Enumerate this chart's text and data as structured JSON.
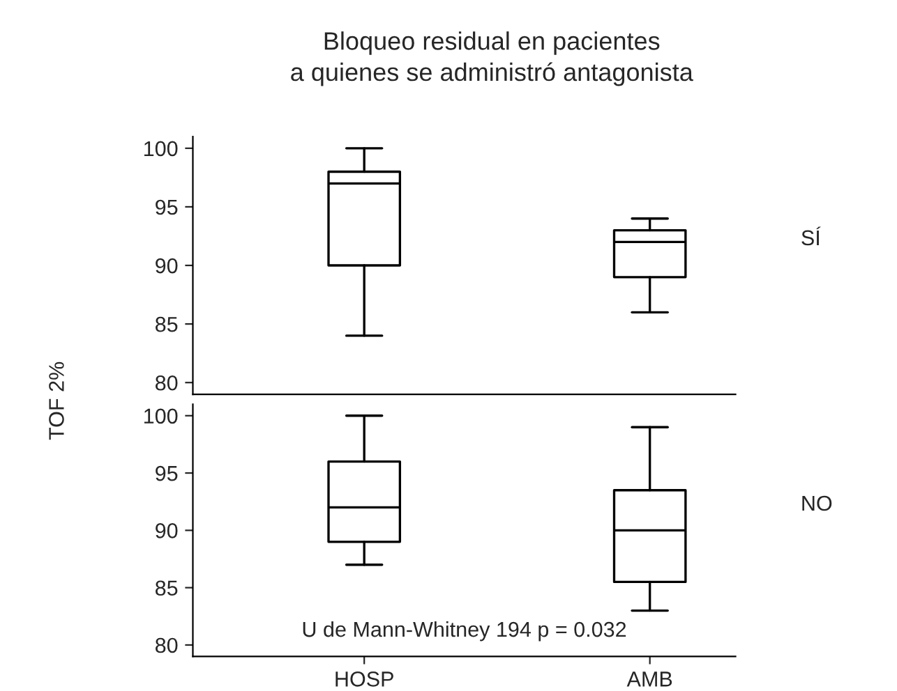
{
  "chart_data": [
    {
      "type": "box",
      "title": "Bloqueo residual en pacientes\na quienes se administró antagonista",
      "ylabel": "TOF 2%",
      "categories": [
        null,
        null
      ],
      "ylim": [
        79,
        101
      ],
      "yticks": [
        80,
        85,
        90,
        95,
        100
      ],
      "grid": false,
      "legend": false,
      "boxes": [
        {
          "low": 84,
          "q1": 90,
          "median": 97,
          "q3": 98,
          "high": 100
        },
        {
          "low": 86,
          "q1": 89,
          "median": 92,
          "q3": 93,
          "high": 94
        }
      ],
      "annotations": [
        "SÍ"
      ]
    },
    {
      "type": "box",
      "categories": [
        "HOSP",
        "AMB"
      ],
      "ylim": [
        79,
        101
      ],
      "yticks": [
        80,
        85,
        90,
        95,
        100
      ],
      "grid": false,
      "legend": false,
      "boxes": [
        {
          "low": 87,
          "q1": 89,
          "median": 92,
          "q3": 96,
          "high": 100
        },
        {
          "low": 83,
          "q1": 85.5,
          "median": 90,
          "q3": 93.5,
          "high": 99
        }
      ],
      "annotations": [
        "NO",
        "U de Mann-Whitney 194 p = 0.032"
      ]
    }
  ]
}
